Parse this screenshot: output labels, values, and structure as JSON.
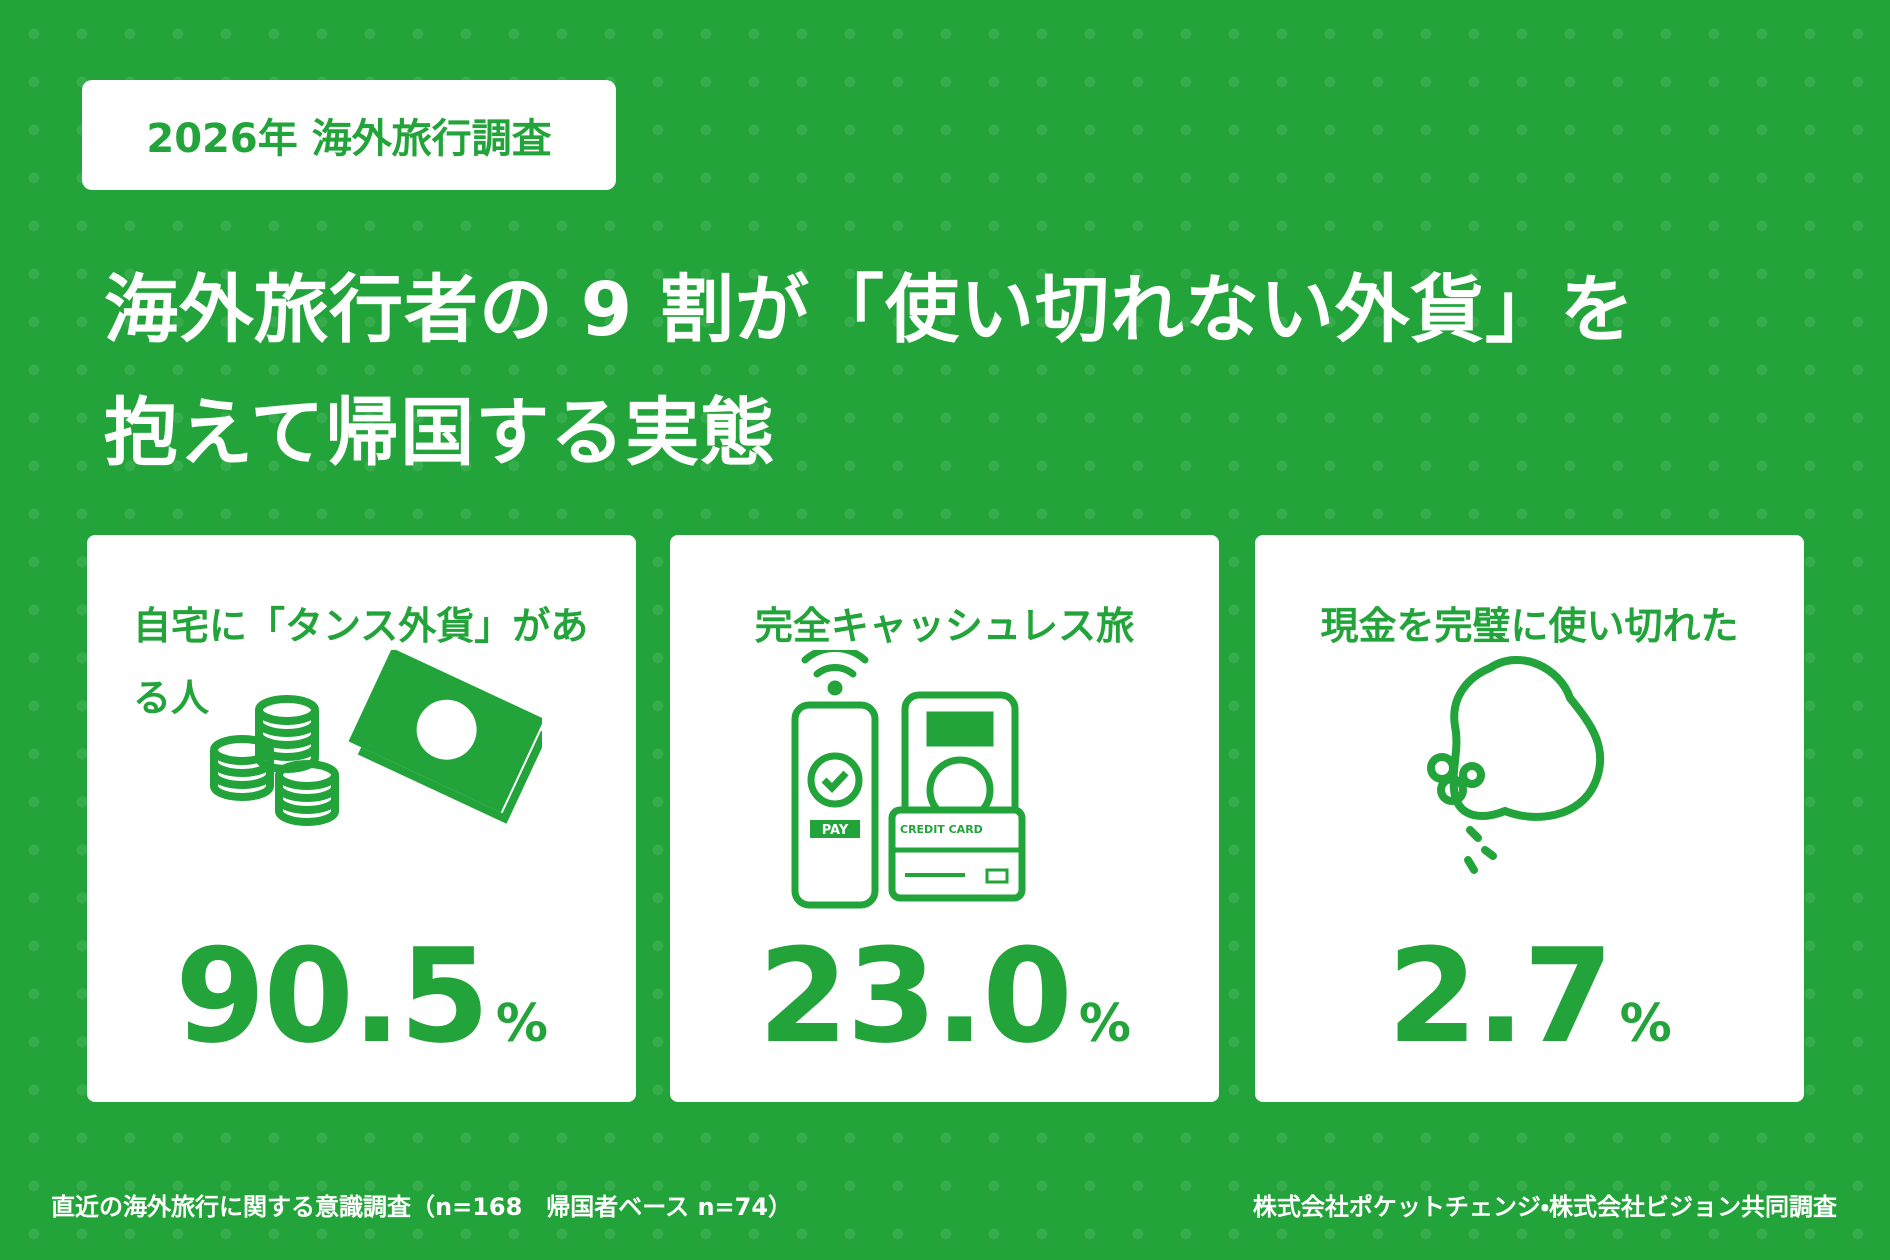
{
  "header": {
    "tag": "2026年 海外旅行調査",
    "title_line1": "海外旅行者の 9 割が「使い切れない外貨」を",
    "title_line2": "抱えて帰国する実態"
  },
  "cards": [
    {
      "label": "自宅に「タンス外貨」がある人",
      "value": "90.5",
      "unit": "%"
    },
    {
      "label": "完全キャッシュレス旅",
      "value": "23.0",
      "unit": "%",
      "icon_texts": {
        "pay": "PAY",
        "credit_card": "CREDIT CARD"
      }
    },
    {
      "label": "現金を完璧に使い切れた",
      "value": "2.7",
      "unit": "%"
    }
  ],
  "footer": {
    "note": "直近の海外旅行に関する意識調査（n=168　帰国者ベース n=74）",
    "source": "株式会社ポケットチェンジ・株式会社ビジョン共同調査"
  }
}
